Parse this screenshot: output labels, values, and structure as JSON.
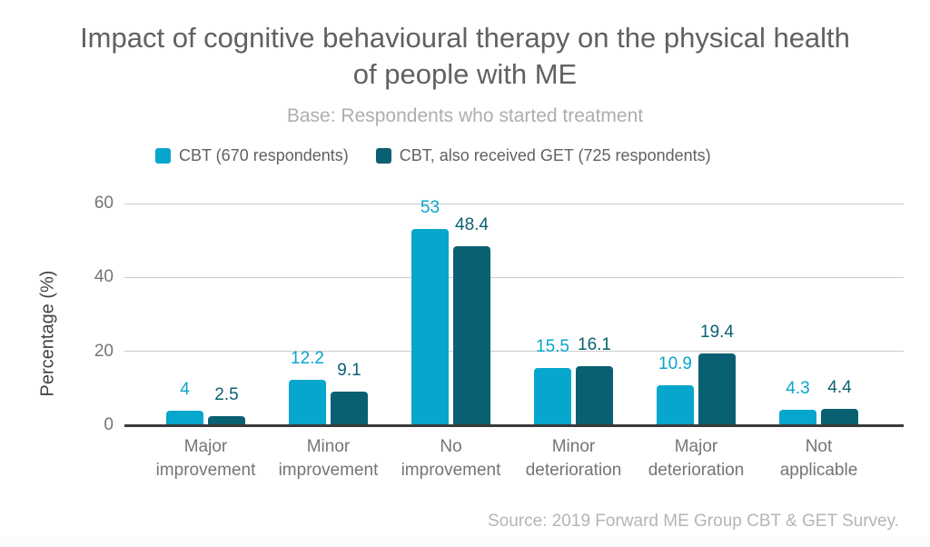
{
  "title": {
    "line1": "Impact of cognitive behavioural therapy on the physical health",
    "line2": "of people with ME"
  },
  "subtitle": "Base: Respondents who started treatment",
  "legend": {
    "items": [
      {
        "label": "CBT (670 respondents)",
        "color": "#07A6CD"
      },
      {
        "label": "CBT, also received GET (725 respondents)",
        "color": "#0A6073"
      }
    ]
  },
  "source": "Source: 2019 Forward ME Group CBT & GET Survey.",
  "colors": {
    "series_cbt": "#07A6CD",
    "series_cbt_get": "#0A6073",
    "gridline": "#cccccc",
    "axis_line": "#3b3b3b",
    "title_text": "#616161",
    "subtitle_text": "#aeaeae",
    "tick_text": "#757575"
  },
  "chart_data": {
    "type": "bar",
    "categories": [
      "Major improvement",
      "Minor improvement",
      "No improvement",
      "Minor deterioration",
      "Major deterioration",
      "Not applicable"
    ],
    "series": [
      {
        "name": "CBT (670 respondents)",
        "color": "#07A6CD",
        "values": [
          4,
          12.2,
          53,
          15.5,
          10.9,
          4.3
        ]
      },
      {
        "name": "CBT, also received GET (725 respondents)",
        "color": "#0A6073",
        "values": [
          2.5,
          9.1,
          48.4,
          16.1,
          19.4,
          4.4
        ]
      }
    ],
    "title": "Impact of cognitive behavioural therapy on the physical health of people with ME",
    "subtitle": "Base: Respondents who started treatment",
    "xlabel": "",
    "ylabel": "Percentage (%)",
    "yticks": [
      0,
      20,
      40,
      60
    ],
    "ylim": [
      0,
      60
    ],
    "grid": true,
    "legend_position": "top"
  }
}
